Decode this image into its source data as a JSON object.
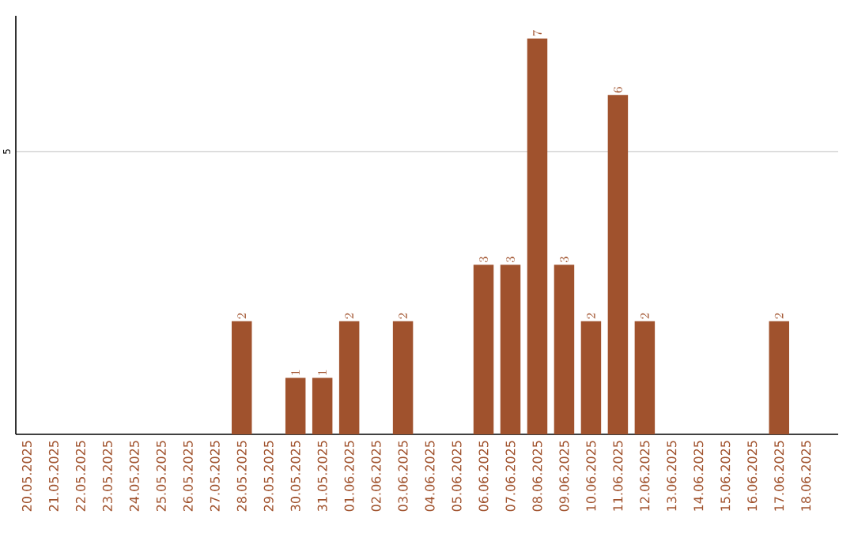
{
  "chart_data": {
    "type": "bar",
    "categories": [
      "20.05.2025",
      "21.05.2025",
      "22.05.2025",
      "23.05.2025",
      "24.05.2025",
      "25.05.2025",
      "26.05.2025",
      "27.05.2025",
      "28.05.2025",
      "29.05.2025",
      "30.05.2025",
      "31.05.2025",
      "01.06.2025",
      "02.06.2025",
      "03.06.2025",
      "04.06.2025",
      "05.06.2025",
      "06.06.2025",
      "07.06.2025",
      "08.06.2025",
      "09.06.2025",
      "10.06.2025",
      "11.06.2025",
      "12.06.2025",
      "13.06.2025",
      "14.06.2025",
      "15.06.2025",
      "16.06.2025",
      "17.06.2025",
      "18.06.2025"
    ],
    "values": [
      null,
      null,
      null,
      null,
      null,
      null,
      null,
      null,
      2,
      null,
      1,
      1,
      2,
      null,
      2,
      null,
      null,
      3,
      3,
      7,
      3,
      2,
      6,
      2,
      null,
      null,
      null,
      null,
      2,
      null
    ],
    "color": "#a0522d",
    "ylim": [
      0,
      7.4
    ],
    "yticks": [
      5
    ],
    "grid": "y",
    "data_labels": true
  }
}
